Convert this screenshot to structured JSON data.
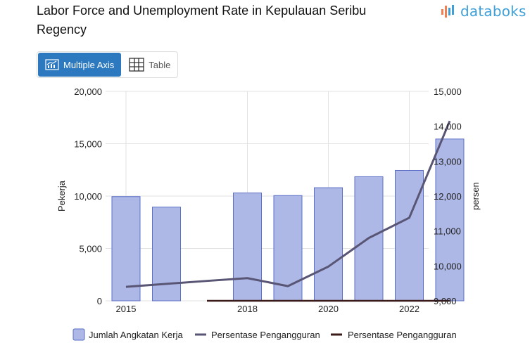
{
  "header": {
    "title": "Labor Force and Unemployment Rate in Kepulauan Seribu Regency",
    "logo_text": "databoks",
    "logo_icon": "databoks-bars-icon"
  },
  "tabs": [
    {
      "label": "Multiple Axis",
      "icon": "chart-icon",
      "active": true
    },
    {
      "label": "Table",
      "icon": "table-icon",
      "active": false
    }
  ],
  "chart_data": {
    "type": "bar",
    "x_years": [
      2015,
      2016,
      2017,
      2018,
      2019,
      2020,
      2021,
      2022,
      2023
    ],
    "x_tick_labels": [
      "2015",
      "2018",
      "2020",
      "2022"
    ],
    "x_tick_positions": [
      2015,
      2018,
      2020,
      2022
    ],
    "bar_years": [
      2015,
      2016,
      2018,
      2019,
      2020,
      2021,
      2022,
      2023
    ],
    "left_axis": {
      "label": "Pekerja",
      "ylim": [
        0,
        20000
      ],
      "ticks": [
        "0",
        "5,000",
        "10,000",
        "15,000",
        "20,000"
      ],
      "tick_values": [
        0,
        5000,
        10000,
        15000,
        20000
      ]
    },
    "right_axis": {
      "label": "persen",
      "ylim": [
        9000,
        15000
      ],
      "ticks": [
        "9,000",
        "10,000",
        "11,000",
        "12,000",
        "13,000",
        "14,000",
        "15,000"
      ],
      "tick_values": [
        9000,
        10000,
        11000,
        12000,
        13000,
        14000,
        15000
      ]
    },
    "grid": true,
    "legend_position": "bottom",
    "series": [
      {
        "name": "Jumlah Angkatan Kerja",
        "kind": "bar",
        "axis": "left",
        "color": "#aeb8e6",
        "stroke": "#5b6fc7",
        "values": [
          9950,
          8950,
          10300,
          10050,
          10800,
          11850,
          12450,
          15450
        ]
      },
      {
        "name": "Persentase Pengangguran",
        "kind": "line",
        "axis": "right",
        "color": "#595575",
        "years": [
          2015,
          2017,
          2018,
          2019,
          2020,
          2021,
          2022,
          2023
        ],
        "values": [
          9400,
          9570,
          9650,
          9420,
          9980,
          10800,
          11380,
          14150
        ]
      },
      {
        "name": "Persentase Pengangguran",
        "kind": "line",
        "axis": "right",
        "color": "#3b1a1a",
        "years": [
          2017,
          2023
        ],
        "values": [
          9000,
          9000
        ]
      }
    ]
  }
}
